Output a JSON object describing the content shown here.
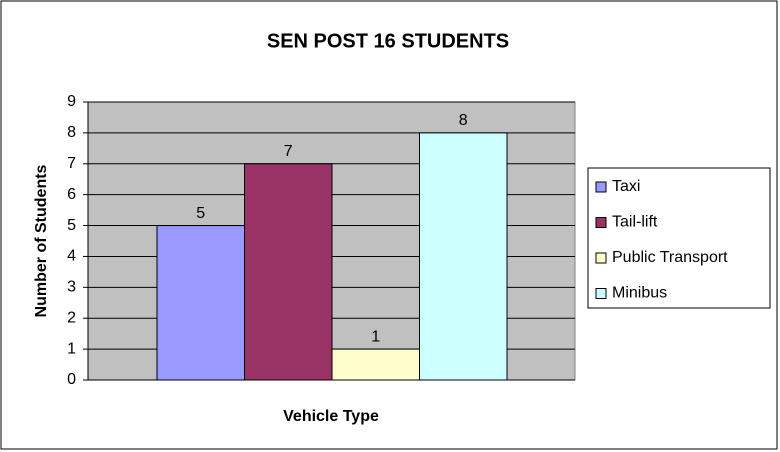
{
  "chart_data": {
    "type": "bar",
    "title": "SEN POST 16 STUDENTS",
    "xlabel": "Vehicle Type",
    "ylabel": "Number of Students",
    "series": [
      {
        "name": "Taxi",
        "color": "#9999ff",
        "values": [
          5
        ]
      },
      {
        "name": "Tail-lift",
        "color": "#993366",
        "values": [
          7
        ]
      },
      {
        "name": "Public Transport",
        "color": "#ffffcc",
        "values": [
          1
        ]
      },
      {
        "name": "Minibus",
        "color": "#ccffff",
        "values": [
          8
        ]
      }
    ],
    "ylim": [
      0,
      9
    ],
    "yticks": [
      0,
      1,
      2,
      3,
      4,
      5,
      6,
      7,
      8,
      9
    ],
    "grid": true,
    "legend": "right"
  }
}
